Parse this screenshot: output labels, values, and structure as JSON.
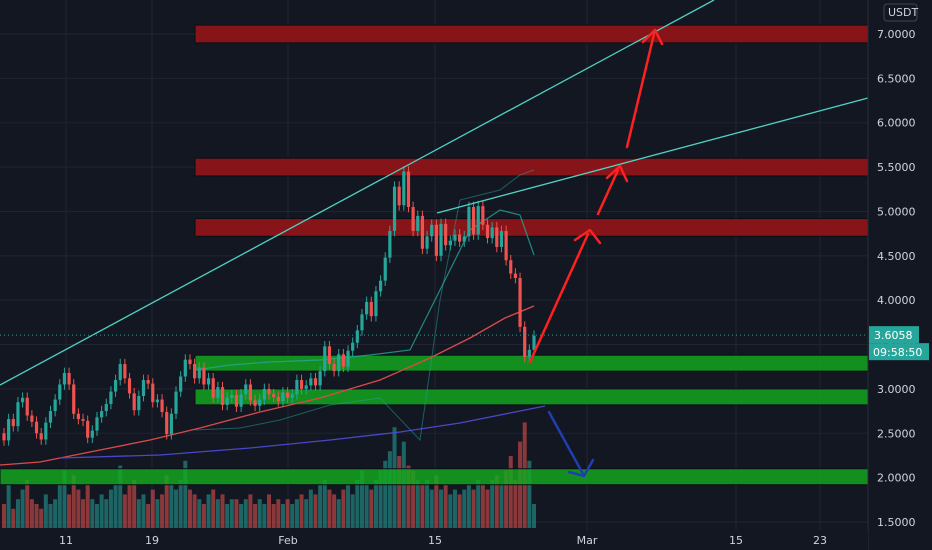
{
  "currency_label": "USDT",
  "current_price": "3.6058",
  "countdown": "09:58:50",
  "chart_data": {
    "type": "candlestick",
    "y_unit": "USDT",
    "ylim": [
      1.5,
      7.2
    ],
    "y_ticks": [
      "7.0000",
      "6.5000",
      "6.0000",
      "5.5000",
      "5.0000",
      "4.5000",
      "4.0000",
      "3.5000",
      "3.0000",
      "2.5000",
      "2.0000",
      "1.5000"
    ],
    "x_ticks": [
      "11",
      "19",
      "Feb",
      "15",
      "Mar",
      "15",
      "23"
    ],
    "candles": [
      [
        2.5,
        2.42
      ],
      [
        2.42,
        2.66
      ],
      [
        2.66,
        2.58
      ],
      [
        2.58,
        2.85
      ],
      [
        2.85,
        2.9
      ],
      [
        2.9,
        2.7
      ],
      [
        2.7,
        2.63
      ],
      [
        2.63,
        2.5
      ],
      [
        2.5,
        2.43
      ],
      [
        2.43,
        2.62
      ],
      [
        2.62,
        2.75
      ],
      [
        2.75,
        2.88
      ],
      [
        2.88,
        3.05
      ],
      [
        3.05,
        3.18
      ],
      [
        3.18,
        3.05
      ],
      [
        3.05,
        2.72
      ],
      [
        2.72,
        2.66
      ],
      [
        2.66,
        2.64
      ],
      [
        2.64,
        2.45
      ],
      [
        2.45,
        2.53
      ],
      [
        2.53,
        2.68
      ],
      [
        2.68,
        2.75
      ],
      [
        2.75,
        2.83
      ],
      [
        2.83,
        2.97
      ],
      [
        2.97,
        3.1
      ],
      [
        3.1,
        3.28
      ],
      [
        3.28,
        3.12
      ],
      [
        3.12,
        2.95
      ],
      [
        2.95,
        2.76
      ],
      [
        2.76,
        2.92
      ],
      [
        2.92,
        3.1
      ],
      [
        3.1,
        3.06
      ],
      [
        3.06,
        2.85
      ],
      [
        2.85,
        2.88
      ],
      [
        2.88,
        2.74
      ],
      [
        2.74,
        2.49
      ],
      [
        2.49,
        2.72
      ],
      [
        2.72,
        2.97
      ],
      [
        2.97,
        3.14
      ],
      [
        3.14,
        3.33
      ],
      [
        3.33,
        3.28
      ],
      [
        3.28,
        3.12
      ],
      [
        3.12,
        3.24
      ],
      [
        3.24,
        3.05
      ],
      [
        3.05,
        3.12
      ],
      [
        3.12,
        2.9
      ],
      [
        2.9,
        3.02
      ],
      [
        3.02,
        2.82
      ],
      [
        2.82,
        2.9
      ],
      [
        2.9,
        2.93
      ],
      [
        2.93,
        2.8
      ],
      [
        2.8,
        2.94
      ],
      [
        2.94,
        3.05
      ],
      [
        3.05,
        2.87
      ],
      [
        2.87,
        2.81
      ],
      [
        2.81,
        2.88
      ],
      [
        2.88,
        3.0
      ],
      [
        3.0,
        2.94
      ],
      [
        2.94,
        2.91
      ],
      [
        2.91,
        2.86
      ],
      [
        2.86,
        2.96
      ],
      [
        2.96,
        2.9
      ],
      [
        2.9,
        2.94
      ],
      [
        2.94,
        3.1
      ],
      [
        3.1,
        3.0
      ],
      [
        3.0,
        3.04
      ],
      [
        3.04,
        3.12
      ],
      [
        3.12,
        3.04
      ],
      [
        3.04,
        3.2
      ],
      [
        3.2,
        3.48
      ],
      [
        3.48,
        3.28
      ],
      [
        3.28,
        3.2
      ],
      [
        3.2,
        3.39
      ],
      [
        3.39,
        3.25
      ],
      [
        3.25,
        3.43
      ],
      [
        3.43,
        3.52
      ],
      [
        3.52,
        3.66
      ],
      [
        3.66,
        3.84
      ],
      [
        3.84,
        3.98
      ],
      [
        3.98,
        3.82
      ],
      [
        3.82,
        4.1
      ],
      [
        4.1,
        4.22
      ],
      [
        4.22,
        4.48
      ],
      [
        4.48,
        4.78
      ],
      [
        4.78,
        5.28
      ],
      [
        5.28,
        5.07
      ],
      [
        5.07,
        5.45
      ],
      [
        5.45,
        5.05
      ],
      [
        5.05,
        4.78
      ],
      [
        4.78,
        4.95
      ],
      [
        4.95,
        4.58
      ],
      [
        4.58,
        4.72
      ],
      [
        4.72,
        4.85
      ],
      [
        4.85,
        4.5
      ],
      [
        4.5,
        4.86
      ],
      [
        4.86,
        4.62
      ],
      [
        4.62,
        4.67
      ],
      [
        4.67,
        4.74
      ],
      [
        4.74,
        4.66
      ],
      [
        4.66,
        4.72
      ],
      [
        4.72,
        5.05
      ],
      [
        5.05,
        4.74
      ],
      [
        4.74,
        5.06
      ],
      [
        5.06,
        4.85
      ],
      [
        4.85,
        4.7
      ],
      [
        4.7,
        4.82
      ],
      [
        4.82,
        4.6
      ],
      [
        4.6,
        4.78
      ],
      [
        4.78,
        4.45
      ],
      [
        4.45,
        4.3
      ],
      [
        4.3,
        4.25
      ],
      [
        4.25,
        3.7
      ],
      [
        3.7,
        3.36
      ],
      [
        3.36,
        3.44
      ],
      [
        3.44,
        3.6
      ]
    ],
    "volume": [
      0.5,
      0.9,
      0.4,
      0.6,
      0.8,
      1,
      0.6,
      0.5,
      0.4,
      0.7,
      0.5,
      0.6,
      0.9,
      1.2,
      0.7,
      1.1,
      0.8,
      0.6,
      0.9,
      0.6,
      0.5,
      0.7,
      0.6,
      0.8,
      0.9,
      1.3,
      0.7,
      0.9,
      1,
      0.6,
      0.7,
      0.5,
      0.8,
      0.6,
      0.7,
      1.1,
      0.9,
      0.8,
      1,
      1.4,
      0.8,
      0.7,
      0.6,
      0.5,
      0.7,
      0.8,
      0.6,
      0.7,
      0.5,
      0.6,
      0.6,
      0.5,
      0.6,
      0.7,
      0.5,
      0.6,
      0.5,
      0.7,
      0.5,
      0.6,
      0.5,
      0.6,
      0.5,
      0.6,
      0.7,
      0.6,
      0.8,
      0.7,
      0.9,
      1,
      0.8,
      0.7,
      0.6,
      0.8,
      0.9,
      0.7,
      1,
      1.2,
      0.9,
      0.8,
      1,
      1.2,
      1.4,
      1.6,
      2.1,
      1.5,
      1.8,
      1.3,
      1.2,
      1,
      0.9,
      1,
      0.8,
      1.1,
      0.8,
      0.9,
      0.7,
      0.8,
      0.7,
      0.8,
      0.9,
      0.8,
      1,
      0.9,
      0.8,
      1,
      1.1,
      0.9,
      1.2,
      1.5,
      1,
      1.8,
      2.2,
      1.4,
      0.5
    ],
    "colors": {
      "up": "#26a69a",
      "down": "#ef5350",
      "background": "#131722"
    },
    "support_zones": [
      [
        3.2,
        3.38
      ],
      [
        2.82,
        3.0
      ],
      [
        1.92,
        2.1
      ]
    ],
    "resistance_zones": [
      [
        6.9,
        7.1
      ],
      [
        5.4,
        5.6
      ],
      [
        4.72,
        4.92
      ]
    ]
  }
}
